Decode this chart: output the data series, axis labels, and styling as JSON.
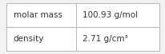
{
  "rows": [
    {
      "label": "molar mass",
      "value": "100.93 g/mol"
    },
    {
      "label": "density",
      "value": "2.71 g/cm³"
    }
  ],
  "background_color": "#f2f2f2",
  "cell_background": "#ffffff",
  "border_color": "#bbbbbb",
  "text_color": "#333333",
  "font_size": 7.5,
  "col_split": 0.455,
  "fig_width": 2.07,
  "fig_height": 0.68
}
